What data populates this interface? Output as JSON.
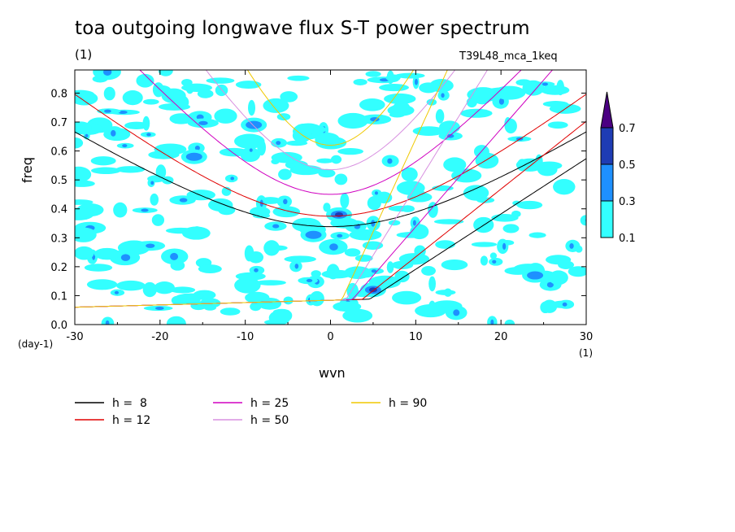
{
  "chart_data": {
    "type": "heatmap",
    "title": "toa outgoing longwave flux S-T power spectrum",
    "subtitle": "(1)",
    "run_label": "T39L48_mca_1keq",
    "xlabel": "wvn",
    "xunit": "(1)",
    "ylabel": "freq",
    "yunit": "(day-1)",
    "xlim": [
      -30,
      30
    ],
    "ylim": [
      0,
      0.88
    ],
    "x_ticks": [
      "-30",
      "-20",
      "-10",
      "0",
      "10",
      "20",
      "30"
    ],
    "y_ticks": [
      "0.0",
      "0.1",
      "0.2",
      "0.3",
      "0.4",
      "0.5",
      "0.6",
      "0.7",
      "0.8"
    ],
    "colorbar": {
      "levels": [
        "0.1",
        "0.3",
        "0.5",
        "0.7"
      ],
      "colors": [
        "#33ffff",
        "#1e90ff",
        "#1e3cb4",
        "#4b0082"
      ]
    },
    "field_levels": [
      0.1,
      0.3,
      0.5,
      0.7
    ],
    "sample_field_peaks": [
      {
        "wvn": 5,
        "freq": 0.12,
        "value": 0.55
      },
      {
        "wvn": 1,
        "freq": 0.38,
        "value": 0.5
      },
      {
        "wvn": -9,
        "freq": 0.69,
        "value": 0.45
      },
      {
        "wvn": -2,
        "freq": 0.31,
        "value": 0.45
      },
      {
        "wvn": 24,
        "freq": 0.17,
        "value": 0.45
      },
      {
        "wvn": -16,
        "freq": 0.58,
        "value": 0.4
      }
    ],
    "series": [
      {
        "name": "h =  8",
        "equivalent_depth": 8,
        "color": "#000000"
      },
      {
        "name": "h = 12",
        "equivalent_depth": 12,
        "color": "#e00000"
      },
      {
        "name": "h = 25",
        "equivalent_depth": 25,
        "color": "#d000c0"
      },
      {
        "name": "h = 50",
        "equivalent_depth": 50,
        "color": "#d890e0"
      },
      {
        "name": "h = 90",
        "equivalent_depth": 90,
        "color": "#f0c800"
      }
    ],
    "legend": [
      {
        "label": "h =  8",
        "color": "#000000"
      },
      {
        "label": "h = 12",
        "color": "#e00000"
      },
      {
        "label": "h = 25",
        "color": "#d000c0"
      },
      {
        "label": "h = 50",
        "color": "#d890e0"
      },
      {
        "label": "h = 90",
        "color": "#f0c800"
      }
    ]
  }
}
